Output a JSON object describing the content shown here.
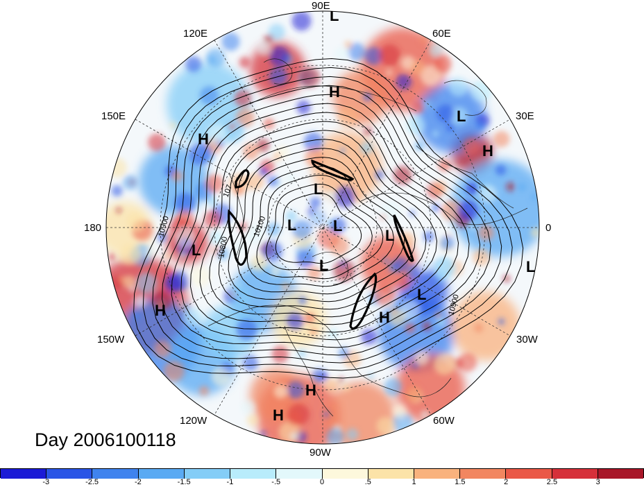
{
  "title": "Day 2006100118",
  "longitude_labels": [
    {
      "text": "90E",
      "key": "lon-90e"
    },
    {
      "text": "60E",
      "key": "lon-60e"
    },
    {
      "text": "120E",
      "key": "lon-120e"
    },
    {
      "text": "30E",
      "key": "lon-30e"
    },
    {
      "text": "150E",
      "key": "lon-150e"
    },
    {
      "text": "180",
      "key": "lon-180"
    },
    {
      "text": "0",
      "key": "lon-0"
    },
    {
      "text": "150W",
      "key": "lon-150w"
    },
    {
      "text": "30W",
      "key": "lon-30w"
    },
    {
      "text": "120W",
      "key": "lon-120w"
    },
    {
      "text": "60W",
      "key": "lon-60w"
    },
    {
      "text": "90W",
      "key": "lon-90w"
    }
  ],
  "pressure_markers": [
    "L",
    "H",
    "L",
    "H",
    "H",
    "L",
    "L",
    "L",
    "L",
    "L",
    "L",
    "L",
    "L",
    "H",
    "H",
    "L",
    "H",
    "H"
  ],
  "contour_labels": [
    "10900",
    "10800",
    "10100",
    "10900",
    "107"
  ],
  "colorbar": {
    "colors": [
      "#1b1bd6",
      "#2a55e6",
      "#3f83ee",
      "#5aaaf3",
      "#84cdf7",
      "#b8ecfb",
      "#e3f8fb",
      "#fdf8dc",
      "#fce3a8",
      "#f9b27d",
      "#f28660",
      "#ea5847",
      "#d6303a",
      "#a81628"
    ],
    "tick_labels": [
      "-3",
      "-2.5",
      "-2",
      "-1.5",
      "-1",
      "-.5",
      "0",
      ".5",
      "1",
      "1.5",
      "2",
      "2.5",
      "3"
    ]
  }
}
